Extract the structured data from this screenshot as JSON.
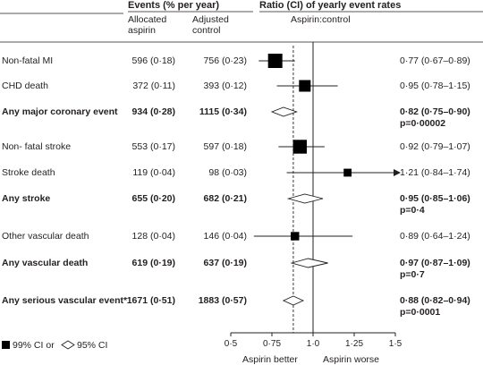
{
  "header": {
    "events_title": "Events (% per year)",
    "col_aspirin": [
      "Allocated",
      "aspirin"
    ],
    "col_control": [
      "Adjusted",
      "control"
    ],
    "ratio_title": "Ratio (CI) of yearly event rates",
    "ratio_subtitle": "Aspirin:control"
  },
  "footer": {
    "legend_square": "99% CI or",
    "legend_diamond": "95% CI",
    "label_better": "Aspirin better",
    "label_worse": "Aspirin worse"
  },
  "chart_data": {
    "type": "forest",
    "xlim": [
      0.5,
      1.5
    ],
    "xticks": [
      0.5,
      0.75,
      1.0,
      1.25,
      1.5
    ],
    "xtick_labels": [
      "0·5",
      "0·75",
      "1·0",
      "1·25",
      "1·5"
    ],
    "reference_line": 1.0,
    "overall_line": 0.88,
    "rows": [
      {
        "label": "Non-fatal MI",
        "aspirin": "596 (0·18)",
        "control": "756 (0·23)",
        "ratio_text": "0·77 (0·67–0·89)",
        "p_text": "",
        "bold": false,
        "marker": "square",
        "est": 0.77,
        "lo": 0.67,
        "hi": 0.89,
        "size": 1.0
      },
      {
        "label": "CHD death",
        "aspirin": "372 (0·11)",
        "control": "393 (0·12)",
        "ratio_text": "0·95 (0·78–1·15)",
        "p_text": "",
        "bold": false,
        "marker": "square",
        "est": 0.95,
        "lo": 0.78,
        "hi": 1.15,
        "size": 0.75
      },
      {
        "label": "Any major coronary event",
        "aspirin": "934 (0·28)",
        "control": "1115 (0·34)",
        "ratio_text": "0·82 (0·75–0·90)",
        "p_text": "p=0·00002",
        "bold": true,
        "marker": "diamond",
        "est": 0.82,
        "lo": 0.75,
        "hi": 0.9,
        "size": 0
      },
      {
        "label": "Non- fatal stroke",
        "aspirin": "553 (0·17)",
        "control": "597 (0·18)",
        "ratio_text": "0·92 (0·79–1·07)",
        "p_text": "",
        "bold": false,
        "marker": "square",
        "est": 0.92,
        "lo": 0.79,
        "hi": 1.07,
        "size": 0.95
      },
      {
        "label": "Stroke death",
        "aspirin": "119 (0·04)",
        "control": "98 (0·03)",
        "ratio_text": "1·21 (0·84–1·74)",
        "p_text": "",
        "bold": false,
        "marker": "square",
        "est": 1.21,
        "lo": 0.84,
        "hi": 1.74,
        "size": 0.4
      },
      {
        "label": "Any stroke",
        "aspirin": "655 (0·20)",
        "control": "682 (0·21)",
        "ratio_text": "0·95 (0·85–1·06)",
        "p_text": "p=0·4",
        "bold": true,
        "marker": "diamond",
        "est": 0.95,
        "lo": 0.85,
        "hi": 1.06,
        "size": 0
      },
      {
        "label": "Other vascular death",
        "aspirin": "128 (0·04)",
        "control": "146 (0·04)",
        "ratio_text": "0·89 (0·64–1·24)",
        "p_text": "",
        "bold": false,
        "marker": "square",
        "est": 0.89,
        "lo": 0.64,
        "hi": 1.24,
        "size": 0.45
      },
      {
        "label": "Any vascular death",
        "aspirin": "619 (0·19)",
        "control": "637 (0·19)",
        "ratio_text": "0·97 (0·87–1·09)",
        "p_text": "p=0·7",
        "bold": true,
        "marker": "diamond",
        "est": 0.97,
        "lo": 0.87,
        "hi": 1.09,
        "size": 0
      },
      {
        "label": "Any serious vascular event*",
        "aspirin": "1671 (0·51)",
        "control": "1883 (0·57)",
        "ratio_text": "0·88 (0·82–0·94)",
        "p_text": "p=0·0001",
        "bold": true,
        "marker": "diamond",
        "est": 0.88,
        "lo": 0.82,
        "hi": 0.94,
        "size": 0
      }
    ]
  }
}
